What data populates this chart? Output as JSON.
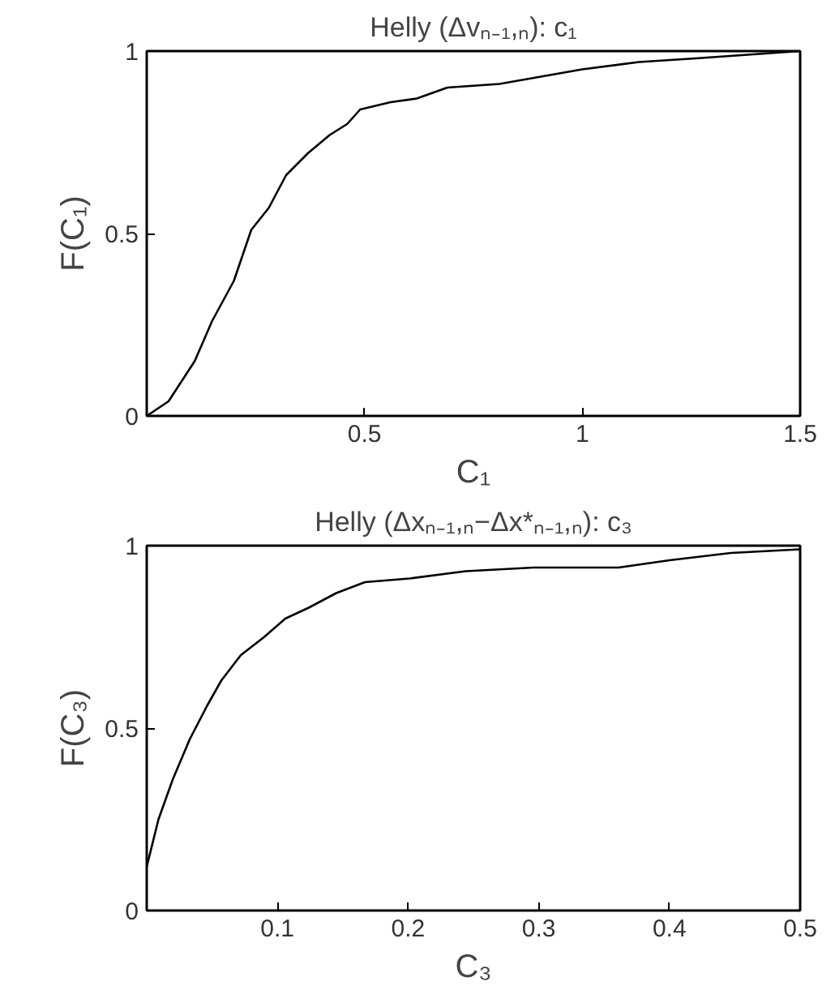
{
  "chart_data": [
    {
      "type": "line",
      "title": "Helly (Δvₙ₋₁,ₙ): c₁",
      "xlabel": "C₁",
      "ylabel": "F(C₁)",
      "xlim": [
        0,
        1.5
      ],
      "ylim": [
        0,
        1
      ],
      "xticks": [
        0.5,
        1,
        1.5
      ],
      "yticks": [
        0,
        0.5,
        1
      ],
      "grid": false,
      "x": [
        0,
        0.05,
        0.11,
        0.15,
        0.2,
        0.24,
        0.28,
        0.32,
        0.37,
        0.42,
        0.46,
        0.49,
        0.56,
        0.62,
        0.69,
        0.81,
        1.0,
        1.13,
        1.26,
        1.5
      ],
      "series": [
        {
          "color": "#000000",
          "values": [
            0,
            0.04,
            0.15,
            0.26,
            0.37,
            0.51,
            0.57,
            0.66,
            0.72,
            0.77,
            0.8,
            0.84,
            0.86,
            0.87,
            0.9,
            0.91,
            0.95,
            0.97,
            0.98,
            1.0
          ]
        }
      ]
    },
    {
      "type": "line",
      "title": "Helly (Δxₙ₋₁,ₙ−Δx*ₙ₋₁,ₙ): c₃",
      "xlabel": "C₃",
      "ylabel": "F(C₃)",
      "xlim": [
        0,
        0.5
      ],
      "ylim": [
        0,
        1
      ],
      "xticks": [
        0.1,
        0.2,
        0.3,
        0.4,
        0.5
      ],
      "yticks": [
        0,
        0.5,
        1
      ],
      "grid": false,
      "x": [
        0,
        0.009,
        0.02,
        0.033,
        0.046,
        0.057,
        0.072,
        0.09,
        0.106,
        0.124,
        0.145,
        0.167,
        0.201,
        0.244,
        0.296,
        0.361,
        0.4,
        0.447,
        0.5
      ],
      "series": [
        {
          "color": "#000000",
          "values": [
            0.12,
            0.25,
            0.36,
            0.47,
            0.56,
            0.63,
            0.7,
            0.75,
            0.8,
            0.83,
            0.87,
            0.9,
            0.91,
            0.93,
            0.94,
            0.94,
            0.96,
            0.98,
            0.99
          ]
        }
      ]
    }
  ]
}
